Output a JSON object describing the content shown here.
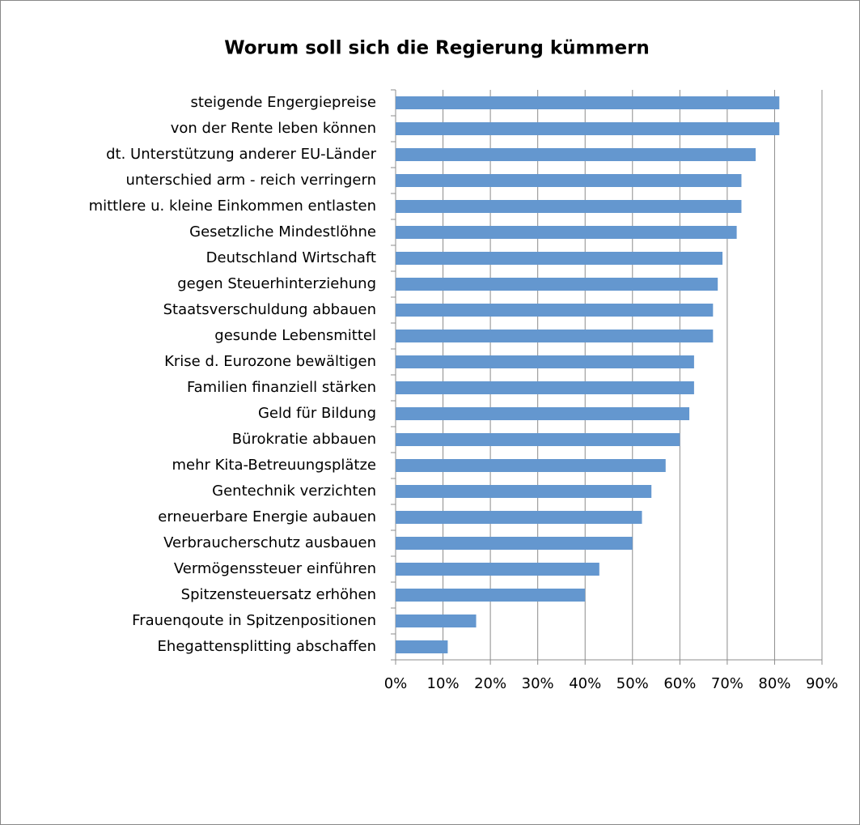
{
  "chart_data": {
    "type": "bar",
    "orientation": "horizontal",
    "title": "Worum soll sich die Regierung kümmern",
    "categories": [
      "steigende Engergiepreise",
      "von der Rente leben können",
      "dt. Unterstützung anderer EU-Länder",
      "unterschied arm - reich verringern",
      "mittlere u. kleine Einkommen entlasten",
      "Gesetzliche Mindestlöhne",
      "Deutschland Wirtschaft",
      "gegen Steuerhinterziehung",
      "Staatsverschuldung abbauen",
      "gesunde Lebensmittel",
      "Krise d. Eurozone bewältigen",
      "Familien finanziell stärken",
      "Geld für Bildung",
      "Bürokratie abbauen",
      "mehr Kita-Betreuungsplätze",
      "Gentechnik verzichten",
      "erneuerbare Energie aubauen",
      "Verbraucherschutz ausbauen",
      "Vermögenssteuer einführen",
      "Spitzensteuersatz erhöhen",
      "Frauenqoute in Spitzenpositionen",
      "Ehegattensplitting abschaffen"
    ],
    "values": [
      81,
      81,
      76,
      73,
      73,
      72,
      69,
      68,
      67,
      67,
      63,
      63,
      62,
      60,
      57,
      54,
      52,
      50,
      43,
      40,
      17,
      11
    ],
    "color": "#6497cf",
    "xlim": [
      0,
      90
    ],
    "xticks": [
      {
        "value": 0,
        "label": "0%"
      },
      {
        "value": 10,
        "label": "10%"
      },
      {
        "value": 20,
        "label": "20%"
      },
      {
        "value": 30,
        "label": "30%"
      },
      {
        "value": 40,
        "label": "40%"
      },
      {
        "value": 50,
        "label": "50%"
      },
      {
        "value": 60,
        "label": "60%"
      },
      {
        "value": 70,
        "label": "70%"
      },
      {
        "value": 80,
        "label": "80%"
      },
      {
        "value": 90,
        "label": "90%"
      }
    ],
    "grid": true
  }
}
